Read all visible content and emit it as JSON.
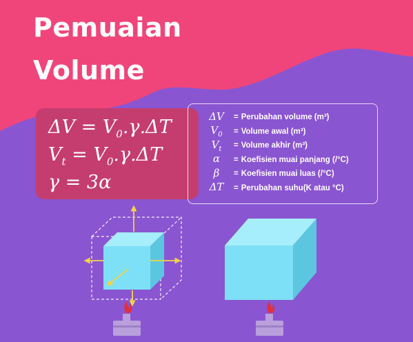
{
  "title": {
    "line1": "Pemuaian",
    "line2": "Volume"
  },
  "formulas": {
    "f1": {
      "lhs": "ΔV",
      "mid": " = ",
      "rhs_a": "V",
      "rhs_sub": "0",
      "rhs_b": ".γ.ΔT"
    },
    "f2": {
      "lhs_a": "V",
      "lhs_sub": "t",
      "mid": " = ",
      "rhs_a": "V",
      "rhs_sub": "0",
      "rhs_b": ".γ.ΔT"
    },
    "f3": {
      "text": "γ = 3α"
    }
  },
  "legend": [
    {
      "sym": "ΔV",
      "sub": "",
      "eq": "=",
      "desc": "Perubahan volume (m³)"
    },
    {
      "sym": "V",
      "sub": "0",
      "eq": "=",
      "desc": "Volume awal (m³)"
    },
    {
      "sym": "V",
      "sub": "t",
      "eq": "=",
      "desc": "Volume akhir (m³)"
    },
    {
      "sym": "α",
      "sub": "",
      "eq": "=",
      "desc": "Koefisien muai panjang (/°C)"
    },
    {
      "sym": "β",
      "sub": "",
      "eq": "=",
      "desc": "Koefisien muai luas (/°C)"
    },
    {
      "sym": "ΔT",
      "sub": "",
      "eq": "=",
      "desc": "Perubahan suhu(K atau °C)"
    }
  ],
  "colors": {
    "background": "#8a55d1",
    "pink_wave": "#f0457a",
    "formula_box": "#c43d6e",
    "cube_front": "#7ee0f7",
    "cube_top": "#a6eefb",
    "cube_side": "#5cc6e0",
    "arrow": "#f3d34a",
    "burner": "#b99fdc",
    "flame": "#e0303a"
  }
}
